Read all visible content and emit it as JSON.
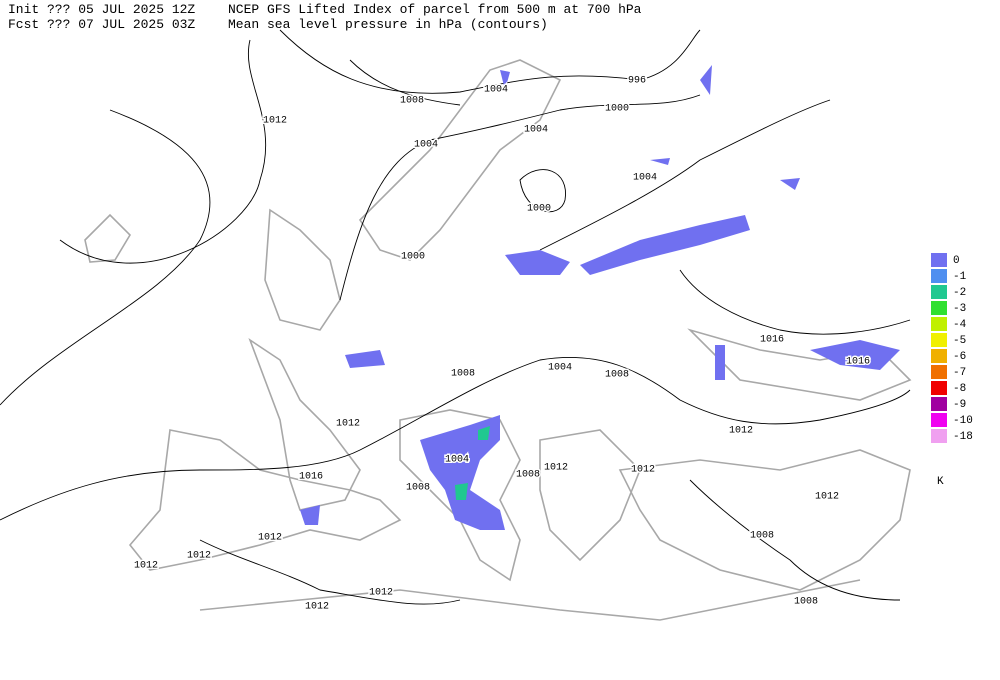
{
  "header": {
    "init": "Init  ??? 05 JUL 2025 12Z",
    "fcst": "Fcst ??? 07 JUL 2025 03Z",
    "title": "NCEP GFS Lifted Index of parcel from 500 m at 700 hPa",
    "subtitle": "Mean sea level pressure in hPa (contours)"
  },
  "legend": {
    "unit": "K",
    "levels": [
      {
        "label": "0",
        "color": "#7070f0"
      },
      {
        "label": "-1",
        "color": "#4f8ff0"
      },
      {
        "label": "-2",
        "color": "#20c890"
      },
      {
        "label": "-3",
        "color": "#30e030"
      },
      {
        "label": "-4",
        "color": "#c0f000"
      },
      {
        "label": "-5",
        "color": "#f0f000"
      },
      {
        "label": "-6",
        "color": "#f0b000"
      },
      {
        "label": "-7",
        "color": "#f07000"
      },
      {
        "label": "-8",
        "color": "#f00000"
      },
      {
        "label": "-9",
        "color": "#a000a0"
      },
      {
        "label": "-10",
        "color": "#f000f0"
      },
      {
        "label": "-18",
        "color": "#f0a0f0"
      }
    ]
  },
  "contour_labels": [
    996,
    1004,
    1008,
    1012,
    1000,
    1004,
    1004,
    1004,
    1000,
    1000,
    1016,
    1016,
    1004,
    1008,
    1008,
    1012,
    1012,
    1004,
    1008,
    1012,
    1012,
    1016,
    1008,
    1012,
    1012,
    1008,
    1012,
    1012,
    1012,
    1012,
    1008
  ]
}
